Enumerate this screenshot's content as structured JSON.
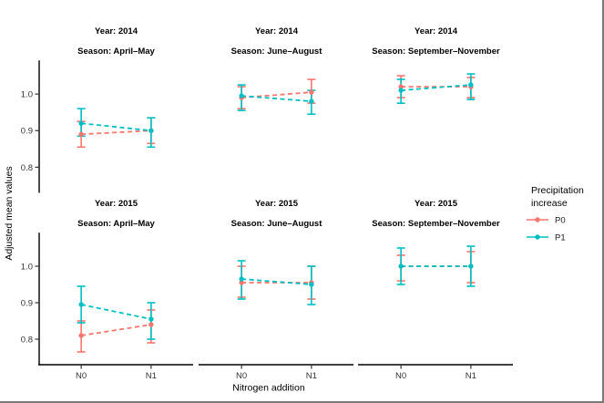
{
  "figure": {
    "ylabel": "Adjusted mean values",
    "xlabel": "Nitrogen addition"
  },
  "legend": {
    "title_lines": [
      "Precipitation",
      "increase"
    ],
    "entries": [
      {
        "label": "P0",
        "color": "#F8766D"
      },
      {
        "label": "P1",
        "color": "#00BFC4"
      }
    ]
  },
  "chart_data": {
    "type": "pointrange",
    "title": "",
    "xlabel": "Nitrogen addition",
    "ylabel": "Adjusted mean values",
    "x_categories": [
      "N0",
      "N1"
    ],
    "ylim": [
      0.73,
      1.09
    ],
    "yticks": [
      {
        "value": 1.0,
        "label": "1.0"
      },
      {
        "value": 0.9,
        "label": "0.9"
      },
      {
        "value": 0.8,
        "label": "0.8"
      }
    ],
    "grid": false,
    "legend_position": "right",
    "line_style": "dashed",
    "facets": {
      "rows": [
        "Year: 2014",
        "Year: 2015"
      ],
      "cols": [
        "Season: April–May",
        "Season: June–August",
        "Season: September–November"
      ]
    },
    "panels": [
      {
        "row": 0,
        "col": 0,
        "strip_year": "Year: 2014",
        "strip_season": "Season: April–May",
        "series": [
          {
            "name": "P0",
            "color": "#F8766D",
            "points": [
              {
                "x": "N0",
                "y": 0.89,
                "ymin": 0.855,
                "ymax": 0.925
              },
              {
                "x": "N1",
                "y": 0.9,
                "ymin": 0.865,
                "ymax": 0.935
              }
            ]
          },
          {
            "name": "P1",
            "color": "#00BFC4",
            "points": [
              {
                "x": "N0",
                "y": 0.92,
                "ymin": 0.885,
                "ymax": 0.96
              },
              {
                "x": "N1",
                "y": 0.9,
                "ymin": 0.855,
                "ymax": 0.935
              }
            ]
          }
        ]
      },
      {
        "row": 0,
        "col": 1,
        "strip_year": "Year: 2014",
        "strip_season": "Season: June–August",
        "series": [
          {
            "name": "P0",
            "color": "#F8766D",
            "points": [
              {
                "x": "N0",
                "y": 0.99,
                "ymin": 0.96,
                "ymax": 1.02
              },
              {
                "x": "N1",
                "y": 1.005,
                "ymin": 0.975,
                "ymax": 1.04
              }
            ]
          },
          {
            "name": "P1",
            "color": "#00BFC4",
            "points": [
              {
                "x": "N0",
                "y": 0.995,
                "ymin": 0.955,
                "ymax": 1.025
              },
              {
                "x": "N1",
                "y": 0.98,
                "ymin": 0.945,
                "ymax": 1.01
              }
            ]
          }
        ]
      },
      {
        "row": 0,
        "col": 2,
        "strip_year": "Year: 2014",
        "strip_season": "Season: September–November",
        "series": [
          {
            "name": "P0",
            "color": "#F8766D",
            "points": [
              {
                "x": "N0",
                "y": 1.02,
                "ymin": 0.99,
                "ymax": 1.05
              },
              {
                "x": "N1",
                "y": 1.02,
                "ymin": 0.99,
                "ymax": 1.045
              }
            ]
          },
          {
            "name": "P1",
            "color": "#00BFC4",
            "points": [
              {
                "x": "N0",
                "y": 1.01,
                "ymin": 0.975,
                "ymax": 1.04
              },
              {
                "x": "N1",
                "y": 1.025,
                "ymin": 0.985,
                "ymax": 1.055
              }
            ]
          }
        ]
      },
      {
        "row": 1,
        "col": 0,
        "strip_year": "Year: 2015",
        "strip_season": "Season: April–May",
        "series": [
          {
            "name": "P0",
            "color": "#F8766D",
            "points": [
              {
                "x": "N0",
                "y": 0.81,
                "ymin": 0.765,
                "ymax": 0.85
              },
              {
                "x": "N1",
                "y": 0.84,
                "ymin": 0.79,
                "ymax": 0.88
              }
            ]
          },
          {
            "name": "P1",
            "color": "#00BFC4",
            "points": [
              {
                "x": "N0",
                "y": 0.895,
                "ymin": 0.845,
                "ymax": 0.945
              },
              {
                "x": "N1",
                "y": 0.855,
                "ymin": 0.8,
                "ymax": 0.9
              }
            ]
          }
        ]
      },
      {
        "row": 1,
        "col": 1,
        "strip_year": "Year: 2015",
        "strip_season": "Season: June–August",
        "series": [
          {
            "name": "P0",
            "color": "#F8766D",
            "points": [
              {
                "x": "N0",
                "y": 0.955,
                "ymin": 0.915,
                "ymax": 1.0
              },
              {
                "x": "N1",
                "y": 0.955,
                "ymin": 0.91,
                "ymax": 1.0
              }
            ]
          },
          {
            "name": "P1",
            "color": "#00BFC4",
            "points": [
              {
                "x": "N0",
                "y": 0.965,
                "ymin": 0.91,
                "ymax": 1.015
              },
              {
                "x": "N1",
                "y": 0.95,
                "ymin": 0.895,
                "ymax": 1.0
              }
            ]
          }
        ]
      },
      {
        "row": 1,
        "col": 2,
        "strip_year": "Year: 2015",
        "strip_season": "Season: September–November",
        "series": [
          {
            "name": "P0",
            "color": "#F8766D",
            "points": [
              {
                "x": "N0",
                "y": 1.0,
                "ymin": 0.96,
                "ymax": 1.03
              },
              {
                "x": "N1",
                "y": 1.0,
                "ymin": 0.955,
                "ymax": 1.04
              }
            ]
          },
          {
            "name": "P1",
            "color": "#00BFC4",
            "points": [
              {
                "x": "N0",
                "y": 1.0,
                "ymin": 0.95,
                "ymax": 1.05
              },
              {
                "x": "N1",
                "y": 1.0,
                "ymin": 0.945,
                "ymax": 1.055
              }
            ]
          }
        ]
      }
    ],
    "legend": {
      "title": "Precipitation increase",
      "entries": [
        "P0",
        "P1"
      ]
    }
  }
}
